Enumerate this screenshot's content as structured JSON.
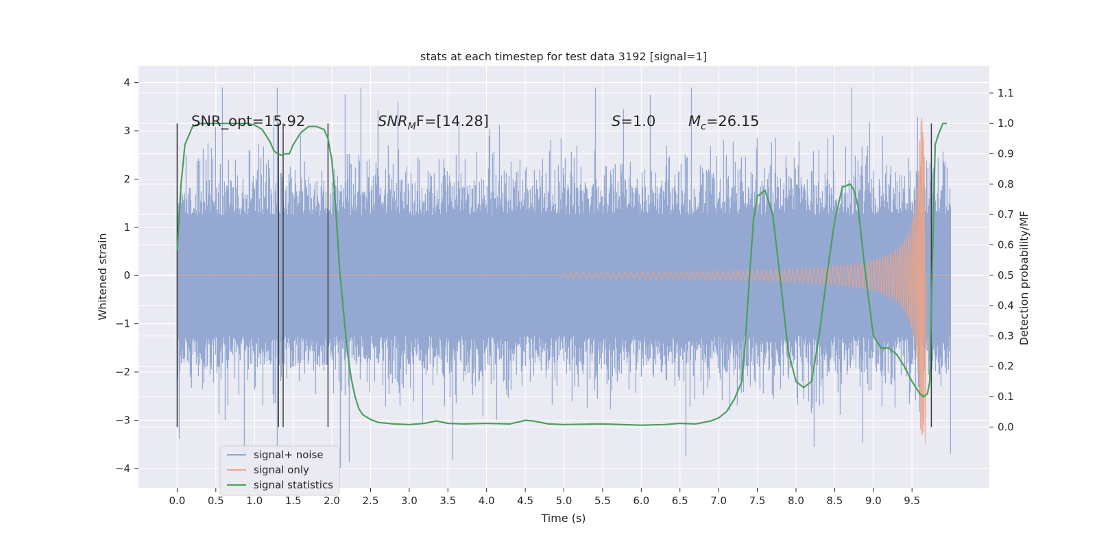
{
  "chart_data": {
    "type": "line",
    "title": "stats at each timestep for test data 3192 [signal=1]",
    "xlabel": "Time (s)",
    "ylabel_left": "Whitened strain",
    "ylabel_right": "Detection probability/MF",
    "xlim": [
      -0.5,
      10.5
    ],
    "ylim_left": [
      -4.4,
      4.35
    ],
    "ylim_right": [
      -0.2,
      1.19
    ],
    "x_ticks": [
      "0.0",
      "0.5",
      "1.0",
      "1.5",
      "2.0",
      "2.5",
      "3.0",
      "3.5",
      "4.0",
      "4.5",
      "5.0",
      "5.5",
      "6.0",
      "6.5",
      "7.0",
      "7.5",
      "8.0",
      "8.5",
      "9.0",
      "9.5"
    ],
    "y_ticks_left": [
      "−4",
      "−3",
      "−2",
      "−1",
      "0",
      "1",
      "2",
      "3",
      "4"
    ],
    "y_ticks_right": [
      "0.0",
      "0.1",
      "0.2",
      "0.3",
      "0.4",
      "0.5",
      "0.6",
      "0.7",
      "0.8",
      "0.9",
      "1.0",
      "1.1"
    ],
    "grid": true,
    "legend_position": "lower-left",
    "annotations": {
      "snr_opt": "SNR_opt=15.92",
      "snr_mf_label": "SNR",
      "snr_mf_sub": "M",
      "snr_mf_tail": "F=[14.28]",
      "s_label": "S",
      "s_value": "=1.0",
      "mc_label": "M",
      "mc_sub": "c",
      "mc_value": "=26.15"
    },
    "vertical_markers_s": [
      0.0,
      1.31,
      1.37,
      1.95,
      9.75
    ],
    "series": [
      {
        "name": "signal+ noise",
        "color": "#8fa4cf",
        "t_range_s": [
          0.0,
          10.0
        ],
        "description_values": "whitened noise, typical envelope ±2.5, peaks to about 4.0 and -4.1"
      },
      {
        "name": "signal only",
        "color": "#e8a38a",
        "chirp": {
          "t_start_s": 5.0,
          "t_merge_s": 9.66,
          "peak_amplitude": 3.3
        }
      },
      {
        "name": "signal statistics",
        "color": "#4a9f5c",
        "axis": "right",
        "x": [
          0.0,
          0.05,
          0.1,
          0.15,
          0.2,
          0.3,
          0.5,
          0.7,
          0.9,
          1.0,
          1.1,
          1.2,
          1.25,
          1.3,
          1.35,
          1.4,
          1.45,
          1.5,
          1.6,
          1.7,
          1.8,
          1.9,
          1.95,
          2.0,
          2.05,
          2.1,
          2.15,
          2.2,
          2.25,
          2.3,
          2.35,
          2.4,
          2.5,
          2.6,
          2.8,
          3.0,
          3.2,
          3.35,
          3.5,
          3.7,
          4.0,
          4.3,
          4.5,
          4.6,
          4.8,
          5.0,
          5.5,
          6.0,
          6.3,
          6.5,
          6.7,
          6.9,
          7.0,
          7.1,
          7.2,
          7.3,
          7.35,
          7.4,
          7.45,
          7.5,
          7.55,
          7.6,
          7.7,
          7.8,
          7.9,
          8.0,
          8.1,
          8.2,
          8.3,
          8.4,
          8.5,
          8.6,
          8.7,
          8.75,
          8.8,
          8.9,
          9.0,
          9.1,
          9.2,
          9.3,
          9.4,
          9.5,
          9.6,
          9.65,
          9.7,
          9.73,
          9.76,
          9.8,
          9.85,
          9.9,
          9.95
        ],
        "values": [
          0.58,
          0.8,
          0.93,
          0.96,
          0.99,
          1.0,
          1.0,
          1.0,
          1.0,
          0.995,
          0.98,
          0.94,
          0.91,
          0.9,
          0.895,
          0.9,
          0.9,
          0.93,
          0.97,
          0.99,
          0.99,
          0.98,
          0.95,
          0.88,
          0.72,
          0.52,
          0.38,
          0.25,
          0.16,
          0.1,
          0.06,
          0.04,
          0.025,
          0.015,
          0.01,
          0.008,
          0.012,
          0.02,
          0.012,
          0.01,
          0.012,
          0.01,
          0.022,
          0.02,
          0.01,
          0.008,
          0.01,
          0.006,
          0.008,
          0.012,
          0.01,
          0.02,
          0.03,
          0.05,
          0.09,
          0.15,
          0.3,
          0.5,
          0.68,
          0.76,
          0.77,
          0.78,
          0.7,
          0.48,
          0.25,
          0.15,
          0.13,
          0.15,
          0.3,
          0.5,
          0.68,
          0.79,
          0.8,
          0.78,
          0.73,
          0.5,
          0.3,
          0.26,
          0.26,
          0.24,
          0.2,
          0.15,
          0.11,
          0.1,
          0.11,
          0.15,
          0.5,
          0.93,
          0.97,
          1.0,
          1.0
        ]
      }
    ]
  }
}
